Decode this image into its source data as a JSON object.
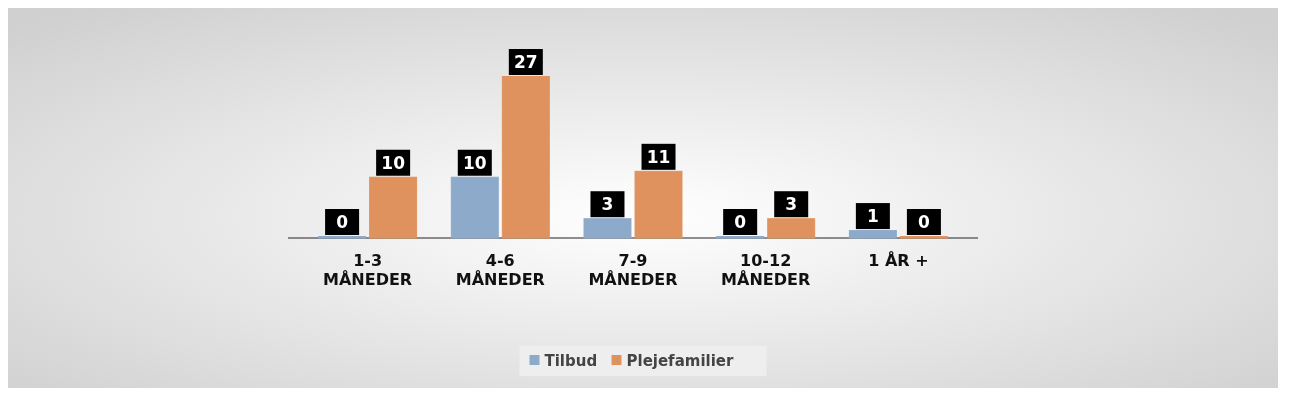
{
  "chart_data": {
    "type": "bar",
    "categories": [
      "1-3 MÅNEDER",
      "4-6 MÅNEDER",
      "7-9 MÅNEDER",
      "10-12 MÅNEDER",
      "1 ÅR +"
    ],
    "series": [
      {
        "name": "Tilbud",
        "color": "#8eaacb",
        "values": [
          0,
          10,
          3,
          0,
          1
        ]
      },
      {
        "name": "Plejefamilier",
        "color": "#e0925e",
        "values": [
          10,
          27,
          11,
          3,
          0
        ]
      }
    ],
    "data_labels": true,
    "legend": "bottom"
  }
}
